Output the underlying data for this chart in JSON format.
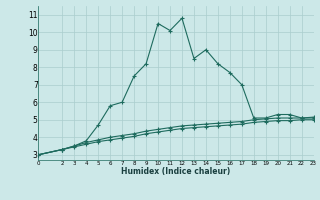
{
  "xlabel": "Humidex (Indice chaleur)",
  "x": [
    0,
    2,
    3,
    4,
    5,
    6,
    7,
    8,
    9,
    10,
    11,
    12,
    13,
    14,
    15,
    16,
    17,
    18,
    19,
    20,
    21,
    22,
    23
  ],
  "y_main": [
    3.0,
    3.3,
    3.5,
    3.8,
    4.7,
    5.8,
    6.0,
    7.5,
    8.2,
    10.5,
    10.1,
    10.8,
    8.5,
    9.0,
    8.2,
    7.7,
    7.0,
    5.1,
    5.1,
    5.3,
    5.3,
    5.1,
    5.1
  ],
  "y_line2": [
    3.0,
    3.3,
    3.5,
    3.7,
    3.85,
    4.0,
    4.1,
    4.2,
    4.35,
    4.45,
    4.55,
    4.65,
    4.7,
    4.75,
    4.8,
    4.85,
    4.9,
    5.0,
    5.05,
    5.1,
    5.1,
    5.1,
    5.15
  ],
  "y_line3": [
    3.0,
    3.3,
    3.45,
    3.6,
    3.75,
    3.85,
    3.95,
    4.05,
    4.2,
    4.3,
    4.4,
    4.5,
    4.55,
    4.6,
    4.65,
    4.7,
    4.75,
    4.85,
    4.9,
    4.95,
    4.95,
    5.0,
    5.0
  ],
  "line_color": "#1e6b5e",
  "bg_color": "#cce8e8",
  "grid_color": "#aacece",
  "ylim": [
    2.7,
    11.5
  ],
  "xlim": [
    0,
    23
  ],
  "yticks": [
    3,
    4,
    5,
    6,
    7,
    8,
    9,
    10,
    11
  ],
  "xticks": [
    0,
    2,
    3,
    4,
    5,
    6,
    7,
    8,
    9,
    10,
    11,
    12,
    13,
    14,
    15,
    16,
    17,
    18,
    19,
    20,
    21,
    22,
    23
  ]
}
